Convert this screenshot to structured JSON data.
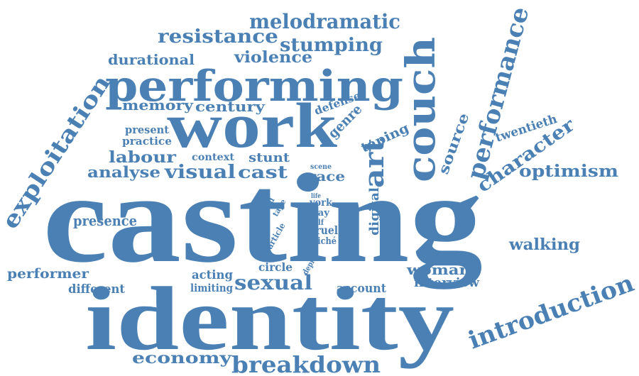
{
  "word_cloud": {
    "color": "#4a80b4",
    "words": {
      "casting": "casting",
      "identity": "identity",
      "work": "work",
      "performing": "performing",
      "couch": "couch",
      "performance": "performance",
      "exploitation": "exploitation",
      "introduction": "introduction",
      "breakdown": "breakdown",
      "economy": "economy",
      "resistance": "resistance",
      "melodramatic": "melodramatic",
      "stumping": "stumping",
      "violence": "violence",
      "durational": "durational",
      "memory": "memory",
      "century": "century",
      "defense": "defense",
      "genre": "genre",
      "present": "present",
      "practice": "practice",
      "labour": "labour",
      "context": "context",
      "stunt": "stunt",
      "analyse": "analyse",
      "visual": "visual",
      "cast": "cast",
      "scene": "scene",
      "race": "race",
      "art": "art",
      "taping": "taping",
      "source": "source",
      "character": "character",
      "twentieth": "twentieth",
      "optimism": "optimism",
      "digital": "digital",
      "life": "life",
      "void": "void",
      "tape": "tape",
      "york": "york",
      "way": "way",
      "self": "self",
      "article": "article",
      "cruel": "cruel",
      "cliche": "cliché",
      "presence": "presence",
      "walking": "walking",
      "performer": "performer",
      "different": "different",
      "acting": "acting",
      "limiting": "limiting",
      "circle": "circle",
      "depict": "depict",
      "sexual": "sexual",
      "account": "account",
      "woman": "woman",
      "interview": "interview"
    }
  }
}
